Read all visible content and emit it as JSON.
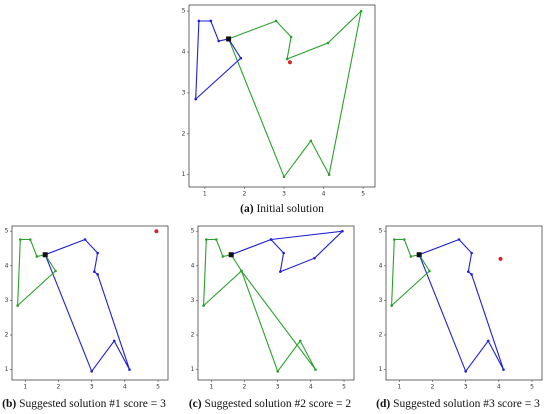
{
  "chart_data": [
    {
      "type": "line",
      "label": "(a)",
      "title": "Initial solution",
      "xlim": [
        0.6,
        5.3
      ],
      "ylim": [
        0.7,
        5.15
      ],
      "xticks": [
        1,
        2,
        3,
        4,
        5
      ],
      "yticks": [
        1,
        2,
        3,
        4,
        5
      ],
      "series": [
        {
          "color": "#2ca02c",
          "x": [
            1.6,
            2.8,
            3.18,
            3.08,
            4.11,
            4.95,
            4.14,
            3.68,
            3.0,
            1.6
          ],
          "values": [
            4.32,
            4.76,
            4.37,
            3.83,
            4.22,
            5.0,
            1.0,
            1.83,
            0.95,
            4.32
          ]
        },
        {
          "color": "#1f1fd6",
          "x": [
            1.6,
            1.35,
            1.15,
            0.85,
            0.77,
            1.91,
            1.6
          ],
          "values": [
            4.32,
            4.27,
            4.76,
            4.76,
            2.85,
            3.85,
            4.32
          ]
        }
      ],
      "depot": {
        "x": 1.6,
        "y": 4.32,
        "color": "#111111"
      },
      "highlight": {
        "x": 3.15,
        "y": 3.75,
        "color": "#d62728"
      }
    },
    {
      "type": "line",
      "label": "(b)",
      "title": "Suggested solution #1 score = 3",
      "xlim": [
        0.6,
        5.3
      ],
      "ylim": [
        0.7,
        5.15
      ],
      "xticks": [
        1,
        2,
        3,
        4,
        5
      ],
      "yticks": [
        1,
        2,
        3,
        4,
        5
      ],
      "series": [
        {
          "color": "#1f1fd6",
          "x": [
            1.6,
            2.8,
            3.18,
            3.08,
            3.18,
            4.14,
            3.68,
            3.0,
            1.6
          ],
          "values": [
            4.32,
            4.76,
            4.37,
            3.83,
            3.75,
            1.0,
            1.83,
            0.95,
            4.32
          ]
        },
        {
          "color": "#2ca02c",
          "x": [
            1.6,
            1.91,
            0.77,
            0.85,
            1.15,
            1.35,
            1.6
          ],
          "values": [
            4.32,
            3.85,
            2.85,
            4.76,
            4.76,
            4.27,
            4.32
          ]
        }
      ],
      "depot": {
        "x": 1.6,
        "y": 4.32,
        "color": "#111111"
      },
      "highlight": {
        "x": 4.95,
        "y": 5.0,
        "color": "#d62728"
      }
    },
    {
      "type": "line",
      "label": "(c)",
      "title": "Suggested solution #2 score = 2",
      "xlim": [
        0.6,
        5.3
      ],
      "ylim": [
        0.7,
        5.15
      ],
      "xticks": [
        1,
        2,
        3,
        4,
        5
      ],
      "yticks": [
        1,
        2,
        3,
        4,
        5
      ],
      "series": [
        {
          "color": "#1f1fd6",
          "x": [
            1.6,
            2.8,
            4.95,
            4.11,
            3.08,
            3.18,
            2.8
          ],
          "values": [
            4.32,
            4.76,
            5.0,
            4.22,
            3.83,
            4.37,
            4.76
          ]
        },
        {
          "color": "#2ca02c",
          "x": [
            1.6,
            1.35,
            1.15,
            0.85,
            0.77,
            1.91,
            4.14,
            3.68,
            3.0,
            1.91,
            1.6
          ],
          "values": [
            4.32,
            4.27,
            4.76,
            4.76,
            2.85,
            3.85,
            1.0,
            1.83,
            0.95,
            3.85,
            4.32
          ]
        }
      ],
      "depot": {
        "x": 1.6,
        "y": 4.32,
        "color": "#111111"
      }
    },
    {
      "type": "line",
      "label": "(d)",
      "title": "Suggested solution #3 score = 3",
      "xlim": [
        0.6,
        5.3
      ],
      "ylim": [
        0.7,
        5.15
      ],
      "xticks": [
        1,
        2,
        3,
        4,
        5
      ],
      "yticks": [
        1,
        2,
        3,
        4,
        5
      ],
      "series": [
        {
          "color": "#1f1fd6",
          "x": [
            1.6,
            2.8,
            3.18,
            3.08,
            3.18,
            4.14,
            3.68,
            3.0,
            1.6
          ],
          "values": [
            4.32,
            4.76,
            4.37,
            3.83,
            3.75,
            1.0,
            1.83,
            0.95,
            4.32
          ]
        },
        {
          "color": "#2ca02c",
          "x": [
            1.6,
            1.91,
            0.77,
            0.85,
            1.15,
            1.35,
            1.6
          ],
          "values": [
            4.32,
            3.85,
            2.85,
            4.76,
            4.76,
            4.27,
            4.32
          ]
        }
      ],
      "depot": {
        "x": 1.6,
        "y": 4.32,
        "color": "#111111"
      },
      "highlight": {
        "x": 4.05,
        "y": 4.2,
        "color": "#d62728"
      }
    }
  ]
}
